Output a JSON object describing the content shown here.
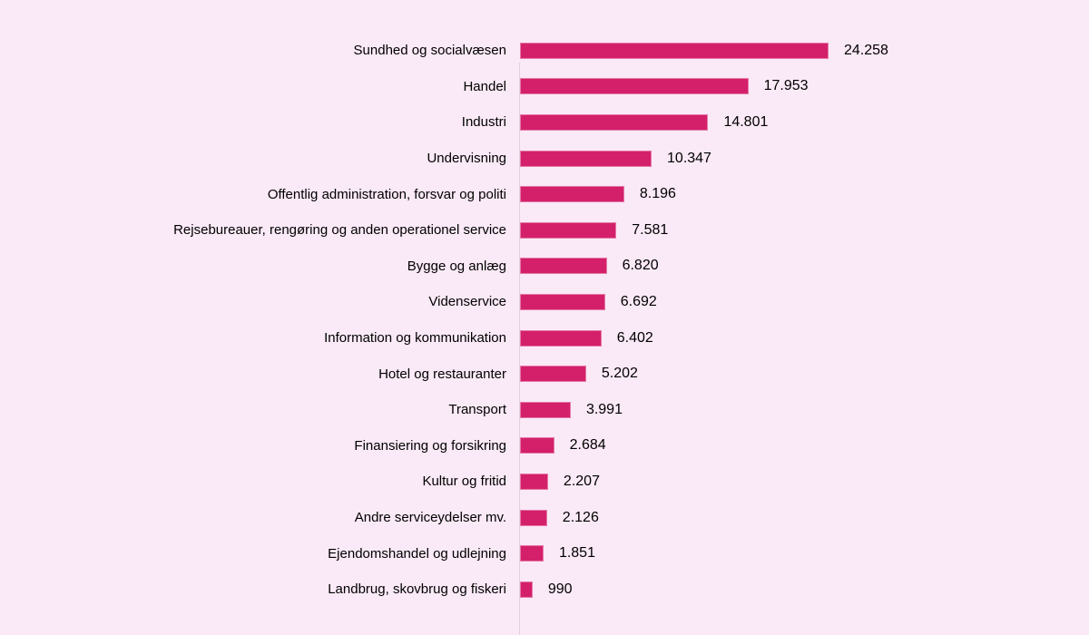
{
  "chart_data": {
    "type": "bar",
    "orientation": "horizontal",
    "title": "",
    "xlabel": "",
    "ylabel": "",
    "grid": false,
    "legend": false,
    "data_labels": true,
    "background_color": "#FAE9F6",
    "bar_color": "#D4206B",
    "axis_line_color": "#DDD3E1",
    "text_color": "#000000",
    "xlim": [
      0,
      24258
    ],
    "categories": [
      "Sundhed og socialvæsen",
      "Handel",
      "Industri",
      "Undervisning",
      "Offentlig administration, forsvar og politi",
      "Rejsebureauer, rengøring og anden operationel service",
      "Bygge og anlæg",
      "Videnservice",
      "Information og kommunikation",
      "Hotel og restauranter",
      "Transport",
      "Finansiering og forsikring",
      "Kultur og fritid",
      "Andre serviceydelser  mv.",
      "Ejendomshandel og udlejning",
      "Landbrug, skovbrug og fiskeri"
    ],
    "values": [
      24258,
      17953,
      14801,
      10347,
      8196,
      7581,
      6820,
      6692,
      6402,
      5202,
      3991,
      2684,
      2207,
      2126,
      1851,
      990
    ],
    "value_labels": [
      "24.258",
      "17.953",
      "14.801",
      "10.347",
      "8.196",
      "7.581",
      "6.820",
      "6.692",
      "6.402",
      "5.202",
      "3.991",
      "2.684",
      "2.207",
      "2.126",
      "1.851",
      "990"
    ]
  }
}
